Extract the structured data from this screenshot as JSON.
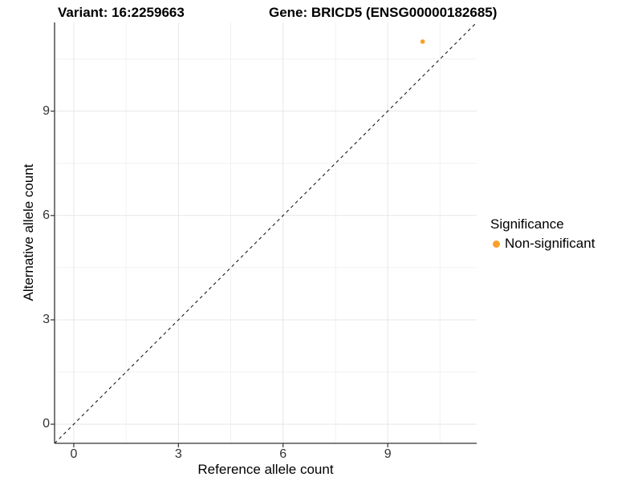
{
  "chart_data": {
    "type": "scatter",
    "title_left": "Variant: 16:2259663",
    "title_right": "Gene: BRICD5 (ENSG00000182685)",
    "xlabel": "Reference allele count",
    "ylabel": "Alternative allele count",
    "xlim": [
      -0.55,
      11.55
    ],
    "ylim": [
      -0.55,
      11.55
    ],
    "xticks": [
      0,
      3,
      6,
      9
    ],
    "yticks": [
      0,
      3,
      6,
      9
    ],
    "xminor": [
      1.5,
      4.5,
      7.5,
      10.5
    ],
    "yminor": [
      1.5,
      4.5,
      7.5,
      10.5
    ],
    "grid": true,
    "identity_line": {
      "style": "dashed"
    },
    "series": [
      {
        "name": "Non-significant",
        "color": "#FAA028",
        "points": [
          {
            "x": 10,
            "y": 11
          }
        ]
      }
    ],
    "legend": {
      "title": "Significance",
      "position": "right",
      "entries": [
        {
          "label": "Non-significant",
          "color": "#FAA028"
        }
      ]
    }
  },
  "style": {
    "grid_major": "#E7E7E7",
    "grid_minor": "#F1F1F1",
    "axis_line": "#333333",
    "tick_mark": "#333333",
    "dashed_line": "#1a1a1a",
    "point_radius": 2.8
  }
}
